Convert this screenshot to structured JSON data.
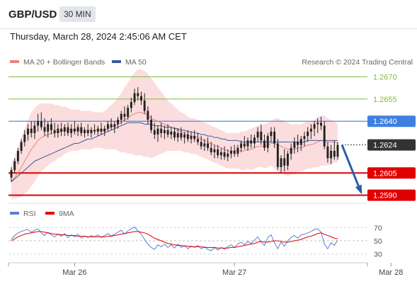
{
  "header": {
    "symbol": "GBP/USD",
    "timeframe": "30 MIN"
  },
  "datetime": "Thursday, March 28, 2024 2:45:06 AM CET",
  "legend": {
    "ma20_label": "MA 20 + Bollinger Bands",
    "ma50_label": "MA 50",
    "credit": "Research © 2024 Trading Central"
  },
  "colors": {
    "ma20": "#f08080",
    "ma50": "#3a5ba0",
    "bands": "#fbd7d7",
    "candle": "#222222",
    "support": "#e00000",
    "resistance": "#7dbf3b",
    "pivot": "#3f7fe0",
    "current": "#333333",
    "rsi": "#5b7fd6",
    "rsi_ma": "#e00000",
    "arrow": "#2a5ea8"
  },
  "levels": [
    {
      "value": 1.267,
      "label": "1.2670",
      "kind": "resistance"
    },
    {
      "value": 1.2655,
      "label": "1.2655",
      "kind": "resistance"
    },
    {
      "value": 1.264,
      "label": "1.2640",
      "kind": "pivot"
    },
    {
      "value": 1.2624,
      "label": "1.2624",
      "kind": "current"
    },
    {
      "value": 1.2605,
      "label": "1.2605",
      "kind": "support"
    },
    {
      "value": 1.259,
      "label": "1.2590",
      "kind": "support"
    }
  ],
  "rsi_legend": {
    "rsi_label": "RSI",
    "ma_label": "9MA"
  },
  "chart_data": {
    "type": "candlestick",
    "ylim": [
      1.2586,
      1.2676
    ],
    "x_labels": [
      "Mar 26",
      "Mar 27",
      "Mar 28"
    ],
    "x_label_index": [
      19,
      67,
      114
    ],
    "ohlc": [
      [
        1.2602,
        1.2609,
        1.2599,
        1.2607
      ],
      [
        1.2607,
        1.2615,
        1.2605,
        1.2613
      ],
      [
        1.2613,
        1.2622,
        1.2611,
        1.262
      ],
      [
        1.262,
        1.2628,
        1.2618,
        1.2626
      ],
      [
        1.2626,
        1.2634,
        1.2623,
        1.2631
      ],
      [
        1.2631,
        1.2638,
        1.2627,
        1.2635
      ],
      [
        1.2635,
        1.264,
        1.2629,
        1.2632
      ],
      [
        1.2632,
        1.264,
        1.2628,
        1.2637
      ],
      [
        1.2637,
        1.2645,
        1.2633,
        1.264
      ],
      [
        1.264,
        1.2646,
        1.2634,
        1.2636
      ],
      [
        1.2636,
        1.2642,
        1.263,
        1.2633
      ],
      [
        1.2633,
        1.264,
        1.2629,
        1.2638
      ],
      [
        1.2638,
        1.2642,
        1.2631,
        1.2634
      ],
      [
        1.2634,
        1.2639,
        1.2629,
        1.2632
      ],
      [
        1.2632,
        1.2638,
        1.2629,
        1.2635
      ],
      [
        1.2635,
        1.2639,
        1.263,
        1.2633
      ],
      [
        1.2633,
        1.2638,
        1.263,
        1.2636
      ],
      [
        1.2636,
        1.2639,
        1.263,
        1.2632
      ],
      [
        1.2632,
        1.2638,
        1.2629,
        1.2635
      ],
      [
        1.2635,
        1.264,
        1.2631,
        1.2633
      ],
      [
        1.2633,
        1.2638,
        1.263,
        1.2636
      ],
      [
        1.2636,
        1.2639,
        1.263,
        1.2632
      ],
      [
        1.2632,
        1.2636,
        1.2629,
        1.2634
      ],
      [
        1.2634,
        1.2638,
        1.263,
        1.2632
      ],
      [
        1.2632,
        1.2636,
        1.2629,
        1.2634
      ],
      [
        1.2634,
        1.2638,
        1.2631,
        1.2633
      ],
      [
        1.2633,
        1.2637,
        1.263,
        1.2635
      ],
      [
        1.2635,
        1.2639,
        1.2631,
        1.2633
      ],
      [
        1.2633,
        1.2637,
        1.263,
        1.2635
      ],
      [
        1.2635,
        1.264,
        1.2633,
        1.2638
      ],
      [
        1.2638,
        1.2642,
        1.2634,
        1.2636
      ],
      [
        1.2636,
        1.264,
        1.2632,
        1.2638
      ],
      [
        1.2638,
        1.2643,
        1.2635,
        1.2641
      ],
      [
        1.2641,
        1.2647,
        1.2638,
        1.2645
      ],
      [
        1.2645,
        1.265,
        1.264,
        1.2643
      ],
      [
        1.2643,
        1.2651,
        1.2641,
        1.2649
      ],
      [
        1.2649,
        1.2656,
        1.2646,
        1.2653
      ],
      [
        1.2653,
        1.2662,
        1.2651,
        1.2659
      ],
      [
        1.2659,
        1.2663,
        1.2654,
        1.2657
      ],
      [
        1.2657,
        1.266,
        1.2651,
        1.2654
      ],
      [
        1.2654,
        1.2659,
        1.2645,
        1.2647
      ],
      [
        1.2647,
        1.265,
        1.2638,
        1.2641
      ],
      [
        1.2641,
        1.2644,
        1.2632,
        1.2634
      ],
      [
        1.2634,
        1.2639,
        1.2628,
        1.2631
      ],
      [
        1.2631,
        1.2637,
        1.2626,
        1.2635
      ],
      [
        1.2635,
        1.2639,
        1.2629,
        1.2632
      ],
      [
        1.2632,
        1.2637,
        1.2628,
        1.2634
      ],
      [
        1.2634,
        1.2638,
        1.2629,
        1.2631
      ],
      [
        1.2631,
        1.2636,
        1.2628,
        1.2633
      ],
      [
        1.2633,
        1.2636,
        1.2627,
        1.2629
      ],
      [
        1.2629,
        1.2635,
        1.2626,
        1.2632
      ],
      [
        1.2632,
        1.2636,
        1.2627,
        1.2629
      ],
      [
        1.2629,
        1.2633,
        1.2625,
        1.2631
      ],
      [
        1.2631,
        1.2634,
        1.2626,
        1.2628
      ],
      [
        1.2628,
        1.2633,
        1.2625,
        1.263
      ],
      [
        1.263,
        1.2634,
        1.2626,
        1.2628
      ],
      [
        1.2628,
        1.2632,
        1.2624,
        1.2626
      ],
      [
        1.2626,
        1.263,
        1.2621,
        1.2623
      ],
      [
        1.2623,
        1.2628,
        1.262,
        1.2625
      ],
      [
        1.2625,
        1.2629,
        1.262,
        1.2622
      ],
      [
        1.2622,
        1.2626,
        1.2617,
        1.2619
      ],
      [
        1.2619,
        1.2624,
        1.2615,
        1.2621
      ],
      [
        1.2621,
        1.2624,
        1.2615,
        1.2617
      ],
      [
        1.2617,
        1.2622,
        1.2614,
        1.2619
      ],
      [
        1.2619,
        1.2623,
        1.2614,
        1.2616
      ],
      [
        1.2616,
        1.2621,
        1.2613,
        1.2618
      ],
      [
        1.2618,
        1.2623,
        1.2615,
        1.262
      ],
      [
        1.262,
        1.2624,
        1.2616,
        1.2618
      ],
      [
        1.2618,
        1.2624,
        1.2616,
        1.2622
      ],
      [
        1.2622,
        1.2627,
        1.2619,
        1.2625
      ],
      [
        1.2625,
        1.263,
        1.2621,
        1.2623
      ],
      [
        1.2623,
        1.2629,
        1.262,
        1.2627
      ],
      [
        1.2627,
        1.2631,
        1.2622,
        1.2625
      ],
      [
        1.2625,
        1.2631,
        1.2622,
        1.2629
      ],
      [
        1.2629,
        1.2636,
        1.2626,
        1.2633
      ],
      [
        1.2633,
        1.2638,
        1.2624,
        1.2627
      ],
      [
        1.2627,
        1.2631,
        1.262,
        1.2622
      ],
      [
        1.2622,
        1.2632,
        1.2619,
        1.263
      ],
      [
        1.263,
        1.2636,
        1.2626,
        1.2633
      ],
      [
        1.2633,
        1.2636,
        1.2622,
        1.2625
      ],
      [
        1.2625,
        1.2628,
        1.2607,
        1.2609
      ],
      [
        1.2609,
        1.2617,
        1.2605,
        1.2615
      ],
      [
        1.2615,
        1.2621,
        1.2606,
        1.261
      ],
      [
        1.261,
        1.262,
        1.2607,
        1.2618
      ],
      [
        1.2618,
        1.2625,
        1.2614,
        1.2622
      ],
      [
        1.2622,
        1.2629,
        1.2618,
        1.2626
      ],
      [
        1.2626,
        1.2631,
        1.2619,
        1.2624
      ],
      [
        1.2624,
        1.263,
        1.262,
        1.2628
      ],
      [
        1.2628,
        1.2633,
        1.2623,
        1.263
      ],
      [
        1.263,
        1.2636,
        1.2626,
        1.2633
      ],
      [
        1.2633,
        1.2638,
        1.2628,
        1.2635
      ],
      [
        1.2635,
        1.264,
        1.263,
        1.2638
      ],
      [
        1.2638,
        1.2642,
        1.2632,
        1.2639
      ],
      [
        1.2639,
        1.2643,
        1.2634,
        1.2637
      ],
      [
        1.2637,
        1.264,
        1.2621,
        1.2623
      ],
      [
        1.2623,
        1.2626,
        1.2612,
        1.2615
      ],
      [
        1.2615,
        1.2624,
        1.2611,
        1.262
      ],
      [
        1.262,
        1.2627,
        1.2614,
        1.2616
      ],
      [
        1.2616,
        1.2626,
        1.2614,
        1.2624
      ]
    ],
    "ma20": [
      1.2599,
      1.2602,
      1.2605,
      1.2609,
      1.2613,
      1.2617,
      1.2621,
      1.2624,
      1.2627,
      1.2629,
      1.263,
      1.2631,
      1.2632,
      1.2632,
      1.2633,
      1.2633,
      1.2634,
      1.2634,
      1.2634,
      1.2634,
      1.2634,
      1.2634,
      1.2634,
      1.2634,
      1.2634,
      1.2634,
      1.2634,
      1.2634,
      1.2634,
      1.2635,
      1.2636,
      1.2637,
      1.2638,
      1.2639,
      1.2641,
      1.2642,
      1.2644,
      1.2645,
      1.2646,
      1.2646,
      1.2645,
      1.2644,
      1.2642,
      1.2641,
      1.264,
      1.2639,
      1.2638,
      1.2637,
      1.2636,
      1.2635,
      1.2634,
      1.2633,
      1.2632,
      1.2631,
      1.263,
      1.263,
      1.2629,
      1.2628,
      1.2627,
      1.2626,
      1.2625,
      1.2624,
      1.2623,
      1.2622,
      1.2621,
      1.262,
      1.262,
      1.262,
      1.262,
      1.262,
      1.262,
      1.2621,
      1.2621,
      1.2622,
      1.2623,
      1.2623,
      1.2623,
      1.2624,
      1.2625,
      1.2625,
      1.2624,
      1.2623,
      1.2622,
      1.2621,
      1.2621,
      1.2621,
      1.2622,
      1.2622,
      1.2623,
      1.2624,
      1.2624,
      1.2625,
      1.2626,
      1.2627,
      1.2627,
      1.2626,
      1.2626,
      1.2626,
      1.2625
    ],
    "ma50": [
      1.2599,
      1.2601,
      1.2603,
      1.2605,
      1.2607,
      1.2609,
      1.2611,
      1.2613,
      1.2614,
      1.2615,
      1.2616,
      1.2617,
      1.2618,
      1.2619,
      1.262,
      1.2621,
      1.2622,
      1.2623,
      1.2624,
      1.2625,
      1.2625,
      1.2626,
      1.2627,
      1.2628,
      1.2628,
      1.2629,
      1.263,
      1.2631,
      1.2632,
      1.2633,
      1.2634,
      1.2635,
      1.2636,
      1.2637,
      1.2638,
      1.2639,
      1.2639,
      1.2639,
      1.2639,
      1.2639,
      1.2638,
      1.2638,
      1.2638,
      1.2637,
      1.2637,
      1.2637,
      1.2636,
      1.2636,
      1.2636,
      1.2635,
      1.2635,
      1.2634,
      1.2634,
      1.2633,
      1.2633,
      1.2632,
      1.2632,
      1.2631,
      1.2631,
      1.263,
      1.263,
      1.2629,
      1.2629,
      1.2628,
      1.2628,
      1.2627,
      1.2627,
      1.2627,
      1.2627,
      1.2626,
      1.2626,
      1.2626,
      1.2626,
      1.2626,
      1.2626,
      1.2626,
      1.2626,
      1.2626,
      1.2626,
      1.2626,
      1.2626,
      1.2626,
      1.2626,
      1.2626,
      1.2626,
      1.2626,
      1.2626,
      1.2626,
      1.2626,
      1.2627,
      1.2627,
      1.2627,
      1.2627,
      1.2627,
      1.2627,
      1.2627,
      1.2627,
      1.2627,
      1.2627
    ],
    "bb_width": [
      0.0012,
      0.0014,
      0.0017,
      0.002,
      0.0022,
      0.0024,
      0.0025,
      0.0025,
      0.0024,
      0.0023,
      0.0022,
      0.0021,
      0.002,
      0.0019,
      0.0018,
      0.0017,
      0.0016,
      0.0015,
      0.0014,
      0.0014,
      0.0014,
      0.0013,
      0.0013,
      0.0013,
      0.0013,
      0.0012,
      0.0012,
      0.0012,
      0.0013,
      0.0014,
      0.0015,
      0.0016,
      0.0018,
      0.002,
      0.0022,
      0.0024,
      0.0026,
      0.0028,
      0.0029,
      0.0029,
      0.0029,
      0.0028,
      0.0027,
      0.0025,
      0.0023,
      0.0021,
      0.0019,
      0.0017,
      0.0016,
      0.0015,
      0.0014,
      0.0013,
      0.0013,
      0.0012,
      0.0012,
      0.0012,
      0.0012,
      0.0012,
      0.0012,
      0.0012,
      0.0012,
      0.0012,
      0.0012,
      0.0012,
      0.0012,
      0.0012,
      0.0012,
      0.0012,
      0.0012,
      0.0013,
      0.0013,
      0.0013,
      0.0014,
      0.0014,
      0.0014,
      0.0014,
      0.0015,
      0.0015,
      0.0015,
      0.0017,
      0.0018,
      0.0018,
      0.0018,
      0.0018,
      0.0017,
      0.0017,
      0.0016,
      0.0016,
      0.0016,
      0.0016,
      0.0016,
      0.0016,
      0.0017,
      0.0017,
      0.0017,
      0.0016,
      0.0015,
      0.0014,
      0.0013
    ],
    "projection": {
      "from": 1.2624,
      "to": 1.259
    },
    "rsi": {
      "ylim": [
        20,
        80
      ],
      "ticks": [
        70,
        50,
        30
      ],
      "values": [
        52,
        58,
        62,
        64,
        66,
        67,
        63,
        66,
        68,
        62,
        58,
        63,
        59,
        56,
        60,
        57,
        61,
        55,
        59,
        56,
        60,
        54,
        57,
        55,
        58,
        56,
        59,
        55,
        58,
        61,
        57,
        60,
        63,
        66,
        60,
        65,
        68,
        71,
        65,
        60,
        52,
        45,
        40,
        37,
        44,
        41,
        45,
        40,
        44,
        39,
        45,
        40,
        43,
        38,
        42,
        40,
        43,
        38,
        41,
        37,
        35,
        40,
        36,
        40,
        37,
        41,
        44,
        40,
        45,
        48,
        44,
        49,
        46,
        51,
        56,
        48,
        43,
        55,
        59,
        47,
        38,
        48,
        42,
        50,
        55,
        58,
        54,
        59,
        60,
        62,
        64,
        67,
        68,
        63,
        45,
        38,
        47,
        43,
        51
      ],
      "ma": [
        50,
        53,
        56,
        58,
        60,
        61,
        62,
        63,
        64,
        64,
        63,
        62,
        61,
        60,
        60,
        59,
        59,
        58,
        58,
        58,
        57,
        57,
        57,
        56,
        56,
        56,
        56,
        56,
        56,
        57,
        57,
        58,
        59,
        60,
        61,
        62,
        63,
        64,
        64,
        63,
        62,
        60,
        57,
        54,
        52,
        50,
        48,
        46,
        45,
        44,
        43,
        43,
        42,
        42,
        41,
        41,
        41,
        41,
        40,
        40,
        40,
        40,
        39,
        39,
        39,
        39,
        40,
        40,
        41,
        42,
        43,
        44,
        45,
        46,
        48,
        49,
        48,
        48,
        49,
        50,
        50,
        49,
        48,
        48,
        49,
        50,
        51,
        52,
        54,
        56,
        57,
        59,
        61,
        62,
        60,
        58,
        56,
        54,
        53
      ]
    }
  }
}
